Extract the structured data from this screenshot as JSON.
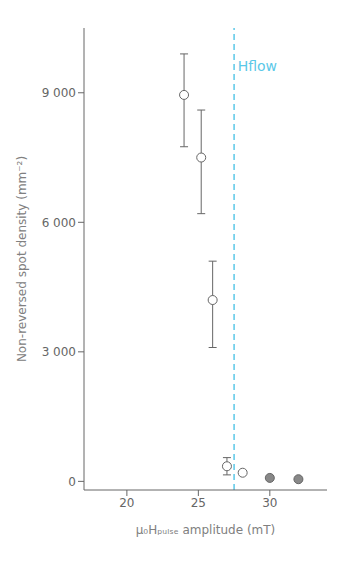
{
  "chart_data": {
    "type": "scatter",
    "x": [
      24.0,
      25.2,
      26.0,
      27.0,
      28.1,
      30.0,
      32.0
    ],
    "values": [
      8950,
      7500,
      4200,
      350,
      200,
      80,
      50
    ],
    "y_err_up": [
      950,
      1100,
      900,
      200,
      0,
      0,
      0
    ],
    "y_err_down": [
      1200,
      1300,
      1100,
      200,
      0,
      0,
      0
    ],
    "colors": [
      "white",
      "white",
      "white",
      "white",
      "white",
      "#888888",
      "#888888"
    ],
    "marker": "circle",
    "xlabel": "μ₀Hₚᵤₗₛₑ amplitude (mT)",
    "ylabel": "Non-reversed spot density (mm⁻²)",
    "xlim": [
      17,
      34
    ],
    "ylim": [
      -200,
      10500
    ],
    "xticks": [
      20,
      25,
      30
    ],
    "yticks": [
      0,
      {
        "value": 3000,
        "label": "3 000"
      },
      {
        "value": 6000,
        "label": "6 000"
      },
      {
        "value": 9000,
        "label": "9 000"
      }
    ],
    "grid": false,
    "annotations": [
      {
        "type": "vline",
        "x": 27.5,
        "color": "#5bc8e8",
        "line_style": "dashed",
        "text": "Hflow",
        "text_x": 27.75,
        "text_y": 9800
      }
    ]
  }
}
